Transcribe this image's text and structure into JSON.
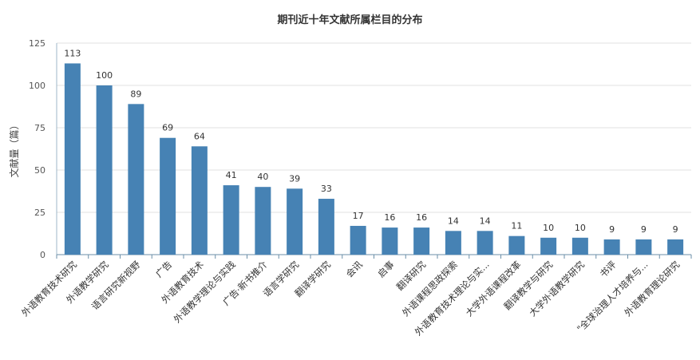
{
  "chart_data": {
    "type": "bar",
    "title": "期刊近十年文献所属栏目的分布",
    "xlabel": "",
    "ylabel": "文献量（篇）",
    "ylim": [
      0,
      125
    ],
    "yticks": [
      0,
      25,
      50,
      75,
      100,
      125
    ],
    "grid": true,
    "legend": "none",
    "bar_color": "#4682b4",
    "categories": [
      "外语教育技术研究",
      "外语教学研究",
      "语言研究新视野",
      "广告",
      "外语教育技术",
      "外语教学理论与实践",
      "广告·新书推介",
      "语言学研究",
      "翻译学研究",
      "会讯",
      "启事",
      "翻译研究",
      "外语课程思政探索",
      "外语教育技术理论与实...",
      "大学外语课程改革",
      "翻译教学与研究",
      "大学外语教学研究",
      "书评",
      "\"全球治理人才培养与...",
      "外语教育理论研究"
    ],
    "values": [
      113,
      100,
      89,
      69,
      64,
      41,
      40,
      39,
      33,
      17,
      16,
      16,
      14,
      14,
      11,
      10,
      10,
      9,
      9,
      9
    ]
  }
}
